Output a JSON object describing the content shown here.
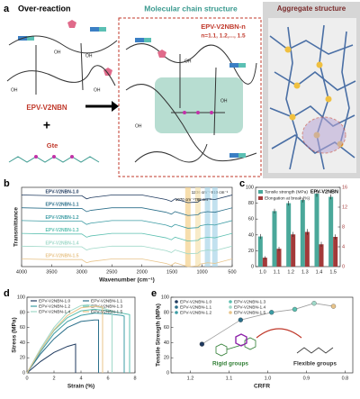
{
  "panel_a": {
    "label": "a",
    "over_reaction": "Over-reaction",
    "molecular_title": "Molecular chain structure",
    "aggregate_title": "Aggregate structure",
    "polymer": "EPV-V2NBN",
    "polymer_n": "EPV-V2NBN-n",
    "n_range": "n=1.1, 1.2,..., 1.5",
    "crosslinker": "Gte",
    "plus": "+",
    "oh_labels": [
      "OH",
      "OH",
      "OH",
      "OH",
      "OH",
      "OH",
      "OH"
    ]
  },
  "chart_data": [
    {
      "label": "b",
      "type": "line",
      "x_label": "Wavenumber (cm⁻¹)",
      "y_label": "Transmittance",
      "xlim": [
        4000,
        500
      ],
      "xticks": [
        4000,
        3500,
        3000,
        2500,
        2000,
        1500,
        1000,
        500
      ],
      "ylim": [
        0,
        6.2
      ],
      "x": [
        4000,
        3500,
        3000,
        2920,
        2850,
        2500,
        2000,
        1600,
        1510,
        1450,
        1236,
        1070,
        1030,
        910,
        788,
        500
      ],
      "series": [
        {
          "name": "EPV-V2NBN-1.0",
          "color": "#1f3a5f",
          "values": [
            5.6,
            5.55,
            5.55,
            5.3,
            5.4,
            5.6,
            5.6,
            5.25,
            5.1,
            5.3,
            5.0,
            5.05,
            5.2,
            5.3,
            5.25,
            5.6
          ]
        },
        {
          "name": "EPV-V2NBN-1.1",
          "color": "#2b6f8a",
          "values": [
            4.6,
            4.55,
            4.55,
            4.3,
            4.4,
            4.6,
            4.6,
            4.25,
            4.1,
            4.3,
            4.0,
            4.05,
            4.2,
            4.3,
            4.25,
            4.6
          ]
        },
        {
          "name": "EPV-V2NBN-1.2",
          "color": "#3d9ca4",
          "values": [
            3.6,
            3.55,
            3.55,
            3.3,
            3.4,
            3.6,
            3.6,
            3.25,
            3.1,
            3.3,
            3.0,
            3.05,
            3.2,
            3.3,
            3.25,
            3.6
          ]
        },
        {
          "name": "EPV-V2NBN-1.3",
          "color": "#5bbfb0",
          "values": [
            2.6,
            2.55,
            2.55,
            2.3,
            2.4,
            2.6,
            2.6,
            2.25,
            2.1,
            2.3,
            2.0,
            2.05,
            2.2,
            2.3,
            2.25,
            2.6
          ]
        },
        {
          "name": "EPV-V2NBN-1.4",
          "color": "#9fd8c8",
          "values": [
            1.6,
            1.55,
            1.55,
            1.3,
            1.4,
            1.6,
            1.6,
            1.25,
            1.1,
            1.3,
            1.0,
            1.05,
            1.2,
            1.3,
            1.25,
            1.6
          ]
        },
        {
          "name": "EPV-V2NBN-1.5",
          "color": "#e8c48a",
          "values": [
            0.6,
            0.55,
            0.55,
            0.3,
            0.4,
            0.6,
            0.6,
            0.25,
            0.1,
            0.3,
            0.0,
            0.05,
            0.2,
            0.3,
            0.25,
            0.6
          ]
        }
      ],
      "annotations": [
        {
          "text": "1236 cm⁻¹",
          "x": 1236,
          "color": "#f3d08a"
        },
        {
          "text": "1070 cm⁻¹",
          "x": 1070,
          "color": "#f5e2b0"
        },
        {
          "text": "910 cm⁻¹",
          "x": 910,
          "color": "#a8d4e8"
        },
        {
          "text": "788 cm⁻¹",
          "x": 788,
          "color": "#a8d4e8"
        }
      ]
    },
    {
      "label": "c",
      "type": "bar",
      "title": "EPV-V2NBN",
      "categories": [
        "1.0",
        "1.1",
        "1.2",
        "1.3",
        "1.4",
        "1.5"
      ],
      "ylim": [
        0,
        100
      ],
      "yticks": [
        0,
        20,
        40,
        60,
        80,
        100
      ],
      "y2lim": [
        0,
        16
      ],
      "y2ticks": [
        0,
        4,
        8,
        12,
        16
      ],
      "series": [
        {
          "name": "Tensile strength (MPa)",
          "color": "#4aa89a",
          "values": [
            38,
            70,
            80,
            84,
            92,
            88
          ],
          "errors": [
            3,
            3,
            3,
            3,
            4,
            3
          ]
        },
        {
          "name": "Elongation at break (%)",
          "color": "#a33a3a",
          "axis": "y2",
          "values": [
            1.8,
            3.6,
            6.5,
            7,
            4.5,
            6
          ],
          "errors": [
            0.3,
            0.4,
            0.5,
            0.6,
            0.5,
            0.5
          ]
        }
      ]
    },
    {
      "label": "d",
      "type": "line",
      "x_label": "Strain (%)",
      "y_label": "Stress (MPa)",
      "xlim": [
        0,
        8
      ],
      "xticks": [
        0,
        2,
        4,
        6,
        8
      ],
      "ylim": [
        0,
        100
      ],
      "yticks": [
        0,
        20,
        40,
        60,
        80,
        100
      ],
      "series": [
        {
          "name": "EPV-V2NBN-1.0",
          "color": "#1f3a5f",
          "x": [
            0,
            1,
            2,
            3,
            3.6,
            3.6
          ],
          "values": [
            0,
            15,
            27,
            35,
            38,
            0
          ]
        },
        {
          "name": "EPV-V2NBN-1.1",
          "color": "#2b6f8a",
          "x": [
            0,
            1,
            2,
            3,
            4,
            5,
            5.3,
            5.3
          ],
          "values": [
            0,
            25,
            45,
            60,
            68,
            70,
            70,
            0
          ]
        },
        {
          "name": "EPV-V2NBN-1.2",
          "color": "#3d9ca4",
          "x": [
            0,
            1,
            2,
            3,
            4,
            5,
            6,
            7,
            7.2,
            7.2
          ],
          "values": [
            0,
            28,
            52,
            68,
            76,
            79,
            78,
            76,
            75,
            0
          ]
        },
        {
          "name": "EPV-V2NBN-1.3",
          "color": "#5bbfb0",
          "x": [
            0,
            1,
            2,
            3,
            4,
            5,
            6,
            7,
            7.6,
            7.6
          ],
          "values": [
            0,
            30,
            56,
            73,
            82,
            84,
            82,
            79,
            77,
            0
          ]
        },
        {
          "name": "EPV-V2NBN-1.4",
          "color": "#9fd8c8",
          "x": [
            0,
            1,
            2,
            3,
            4,
            4.5,
            5.5,
            6.3,
            6.3
          ],
          "values": [
            0,
            32,
            60,
            80,
            89,
            90,
            86,
            82,
            0
          ]
        },
        {
          "name": "EPV-V2NBN-1.5",
          "color": "#e8c48a",
          "x": [
            0,
            1,
            2,
            3,
            4,
            5,
            5.6,
            5.6
          ],
          "values": [
            0,
            30,
            57,
            76,
            86,
            88,
            87,
            0
          ]
        }
      ]
    },
    {
      "label": "e",
      "type": "scatter",
      "x_label": "CRFR",
      "y_label": "Tensile Strength (MPa)",
      "xlim": [
        1.25,
        0.78
      ],
      "xticks": [
        1.2,
        1.1,
        {
          "value": 1,
          "label": "1.0"
        },
        0.9,
        0.8
      ],
      "ylim": [
        0,
        100
      ],
      "yticks": [
        0,
        20,
        40,
        60,
        80,
        100
      ],
      "series": [
        {
          "name": "EPV-V2NBN-1.0",
          "color": "#1f3a5f",
          "x": [
            1.17
          ],
          "values": [
            38
          ]
        },
        {
          "name": "EPV-V2NBN-1.1",
          "color": "#2b6f8a",
          "x": [
            1.07
          ],
          "values": [
            70
          ]
        },
        {
          "name": "EPV-V2NBN-1.2",
          "color": "#3d9ca4",
          "x": [
            0.99
          ],
          "values": [
            80
          ]
        },
        {
          "name": "EPV-V2NBN-1.3",
          "color": "#5bbfb0",
          "x": [
            0.93
          ],
          "values": [
            84
          ]
        },
        {
          "name": "EPV-V2NBN-1.4",
          "color": "#9fd8c8",
          "x": [
            0.88
          ],
          "values": [
            92
          ]
        },
        {
          "name": "EPV-V2NBN-1.5",
          "color": "#e8c48a",
          "x": [
            0.83
          ],
          "values": [
            88
          ]
        }
      ],
      "annotations": [
        {
          "text": "Rigid groups"
        },
        {
          "text": "Flexible groups"
        }
      ]
    }
  ]
}
